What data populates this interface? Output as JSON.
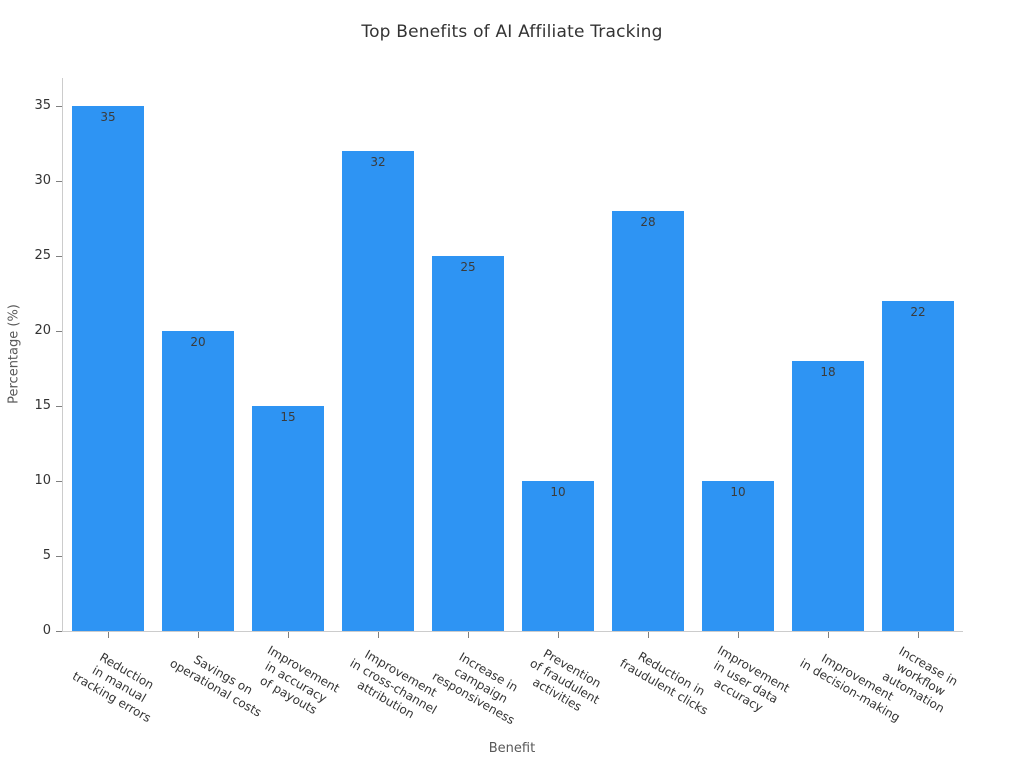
{
  "chart_data": {
    "type": "bar",
    "title": "Top Benefits of AI Affiliate Tracking",
    "xlabel": "Benefit",
    "ylabel": "Percentage (%)",
    "categories": [
      "Reduction\nin manual\ntracking errors",
      "Savings on\noperational costs",
      "Improvement\nin accuracy\nof payouts",
      "Improvement\nin cross-channel\nattribution",
      "Increase in\ncampaign\nresponsiveness",
      "Prevention\nof fraudulent\nactivities",
      "Reduction in\nfraudulent clicks",
      "Improvement\nin user data\naccuracy",
      "Improvement\nin decision-making",
      "Increase in\nworkflow\nautomation"
    ],
    "values": [
      35,
      20,
      15,
      32,
      25,
      10,
      28,
      10,
      18,
      22
    ],
    "bar_value_labels": [
      "35",
      "20",
      "15",
      "32",
      "25",
      "10",
      "28",
      "10",
      "18",
      "22"
    ],
    "yticks": [
      0,
      5,
      10,
      15,
      20,
      25,
      30,
      35
    ],
    "ylim": [
      0,
      36.9
    ],
    "grid": false,
    "legend": null,
    "colors": {
      "bar": "#2e94f3",
      "bar_value_label": "#3b3b3b",
      "axis_spine": "#cccccc",
      "tick_mark": "#7f7f7f",
      "tick_label": "#333333",
      "axis_title": "#595959",
      "title": "#333333",
      "background": "#ffffff"
    }
  }
}
